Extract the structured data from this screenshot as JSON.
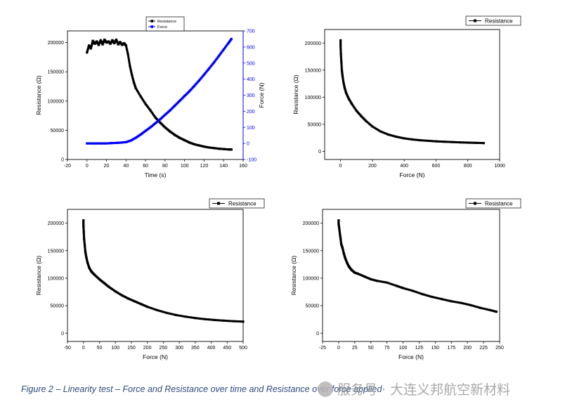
{
  "caption": "Figure 2 – Linearity test – Force and Resistance over time and Resistance over force applied",
  "watermark": "服务号 · 大连义邦航空新材料",
  "colors": {
    "resistance": "#000000",
    "force": "#0000ff"
  },
  "chart_data": [
    {
      "type": "scatter",
      "xlabel": "Time (s)",
      "ylabel": "Resistance (Ω)",
      "y2label": "Force (N)",
      "xlim": [
        -20,
        160
      ],
      "ylim": [
        0,
        220000
      ],
      "y2lim": [
        -100,
        700
      ],
      "xticks": [
        -20,
        0,
        20,
        40,
        60,
        80,
        100,
        120,
        140,
        160
      ],
      "yticks": [
        0,
        50000,
        100000,
        150000,
        200000
      ],
      "y2ticks": [
        -100,
        0,
        100,
        200,
        300,
        400,
        500,
        600,
        700
      ],
      "legend": [
        "Resistance",
        "Force"
      ],
      "legend_position": "top",
      "series": [
        {
          "name": "Resistance",
          "axis": "y",
          "x": [
            0,
            2,
            4,
            6,
            8,
            10,
            12,
            14,
            16,
            18,
            20,
            22,
            24,
            26,
            28,
            30,
            32,
            34,
            36,
            38,
            40,
            42,
            44,
            46,
            48,
            50,
            55,
            60,
            65,
            70,
            75,
            80,
            85,
            90,
            95,
            100,
            105,
            110,
            115,
            120,
            125,
            130,
            135,
            140,
            145,
            148
          ],
          "y": [
            183000,
            195000,
            190000,
            203000,
            198000,
            202000,
            196000,
            204000,
            197000,
            205000,
            200000,
            202000,
            198000,
            204000,
            199000,
            205000,
            197000,
            201000,
            196000,
            199000,
            195000,
            180000,
            160000,
            145000,
            132000,
            122000,
            108000,
            95000,
            84000,
            72000,
            63000,
            55000,
            48000,
            42000,
            37000,
            33000,
            29000,
            26000,
            24000,
            22000,
            20500,
            19500,
            18500,
            17800,
            17200,
            17000
          ]
        },
        {
          "name": "Force",
          "axis": "y2",
          "x": [
            0,
            5,
            10,
            15,
            20,
            25,
            30,
            35,
            40,
            45,
            50,
            55,
            60,
            65,
            70,
            75,
            80,
            85,
            90,
            95,
            100,
            105,
            110,
            115,
            120,
            125,
            130,
            135,
            140,
            145,
            148
          ],
          "y": [
            0,
            0,
            0,
            0,
            0,
            2,
            3,
            5,
            8,
            18,
            35,
            55,
            78,
            100,
            125,
            150,
            178,
            205,
            235,
            265,
            295,
            325,
            358,
            392,
            428,
            465,
            503,
            543,
            584,
            625,
            650
          ]
        }
      ]
    },
    {
      "type": "scatter",
      "xlabel": "Force (N)",
      "ylabel": "Resistance (Ω)",
      "xlim": [
        -100,
        1000
      ],
      "ylim": [
        -15000,
        225000
      ],
      "xticks": [
        0,
        200,
        400,
        600,
        800,
        1000
      ],
      "yticks": [
        0,
        50000,
        100000,
        150000,
        200000
      ],
      "legend": [
        "Resistance"
      ],
      "legend_position": "top-right",
      "series": [
        {
          "name": "Resistance",
          "x": [
            0,
            0,
            2,
            5,
            8,
            12,
            18,
            25,
            35,
            50,
            70,
            100,
            130,
            160,
            200,
            250,
            300,
            350,
            400,
            450,
            500,
            550,
            600,
            650,
            700,
            750,
            800,
            850,
            900
          ],
          "y": [
            205000,
            195000,
            180000,
            165000,
            150000,
            140000,
            128000,
            118000,
            108000,
            98000,
            88000,
            75000,
            65000,
            56000,
            46000,
            37000,
            31000,
            27000,
            24000,
            22000,
            20500,
            19500,
            18500,
            17800,
            17200,
            16600,
            16100,
            15700,
            15300
          ]
        }
      ]
    },
    {
      "type": "scatter",
      "xlabel": "Force (N)",
      "ylabel": "Resistance (Ω)",
      "xlim": [
        -50,
        500
      ],
      "ylim": [
        -15000,
        225000
      ],
      "xticks": [
        -50,
        0,
        50,
        100,
        150,
        200,
        250,
        300,
        350,
        400,
        450,
        500
      ],
      "yticks": [
        0,
        50000,
        100000,
        150000,
        200000
      ],
      "legend": [
        "Resistance"
      ],
      "legend_position": "top-right",
      "series": [
        {
          "name": "Resistance",
          "x": [
            0,
            0,
            1,
            2,
            4,
            6,
            9,
            13,
            18,
            25,
            35,
            50,
            65,
            80,
            100,
            120,
            140,
            160,
            180,
            200,
            230,
            260,
            290,
            320,
            350,
            380,
            410,
            440,
            470,
            500
          ],
          "y": [
            205000,
            195000,
            185000,
            172000,
            160000,
            148000,
            138000,
            128000,
            119000,
            112000,
            106000,
            98000,
            91000,
            84000,
            76000,
            69000,
            63000,
            58000,
            53000,
            48000,
            42000,
            37000,
            33000,
            30000,
            27500,
            25500,
            24000,
            22800,
            21800,
            21000
          ]
        }
      ]
    },
    {
      "type": "scatter",
      "xlabel": "Force (N)",
      "ylabel": "Resistance (Ω)",
      "xlim": [
        -25,
        250
      ],
      "ylim": [
        -15000,
        225000
      ],
      "xticks": [
        -25,
        0,
        25,
        50,
        75,
        100,
        125,
        150,
        175,
        200,
        225,
        250
      ],
      "yticks": [
        0,
        50000,
        100000,
        150000,
        200000
      ],
      "legend": [
        "Resistance"
      ],
      "legend_position": "top-right",
      "series": [
        {
          "name": "Resistance",
          "x": [
            0,
            0,
            1,
            2,
            3,
            4,
            6,
            8,
            10,
            13,
            16,
            20,
            25,
            30,
            40,
            50,
            60,
            75,
            90,
            100,
            115,
            130,
            145,
            160,
            175,
            190,
            205,
            220,
            235,
            245
          ],
          "y": [
            205000,
            198000,
            190000,
            180000,
            172000,
            162000,
            155000,
            145000,
            137000,
            128000,
            121000,
            115000,
            110000,
            108000,
            103000,
            98000,
            95000,
            92000,
            86000,
            82000,
            77000,
            71000,
            66000,
            62000,
            58000,
            55000,
            51000,
            46000,
            42000,
            39000
          ]
        }
      ]
    }
  ]
}
